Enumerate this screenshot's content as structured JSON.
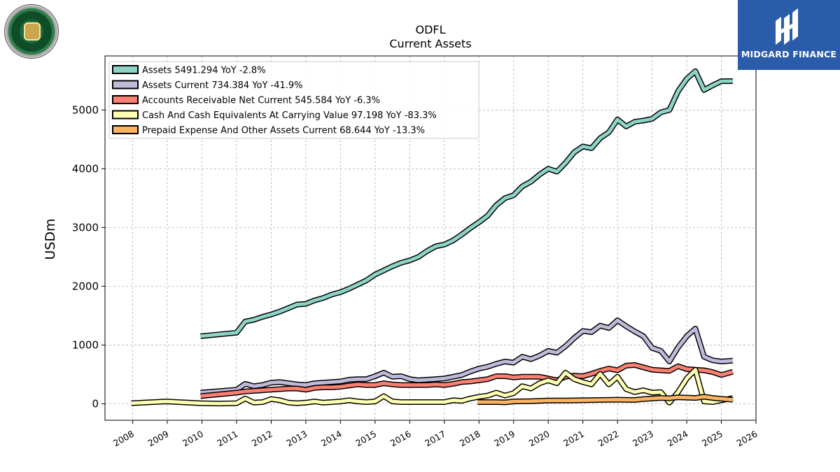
{
  "logos": {
    "left": {
      "name": "Old Dominion Freight Line",
      "text": "OLD DOMINION FREIGHT LINE"
    },
    "right": {
      "name": "MIDGARD FINANCE",
      "bg_color": "#2a5caa"
    }
  },
  "chart_data": {
    "type": "line",
    "title": "ODFL",
    "subtitle": "Current  Assets",
    "ylabel": "USDm",
    "xlabel": "",
    "xlim": [
      2007.2,
      2026.0
    ],
    "ylim": [
      -280,
      5920
    ],
    "xticks": [
      "2008",
      "2009",
      "2010",
      "2011",
      "2012",
      "2013",
      "2014",
      "2015",
      "2016",
      "2017",
      "2018",
      "2019",
      "2020",
      "2021",
      "2022",
      "2023",
      "2024",
      "2025",
      "2026"
    ],
    "yticks": [
      "0",
      "1000",
      "2000",
      "3000",
      "4000",
      "5000"
    ],
    "grid": true,
    "legend_position": "top-left",
    "series": [
      {
        "name": "Assets  5491.294 YoY -2.8%",
        "color": "#8dd3c7",
        "points": [
          [
            2009.96,
            1150
          ],
          [
            2011.0,
            1210
          ],
          [
            2011.25,
            1400
          ],
          [
            2011.5,
            1430
          ],
          [
            2011.75,
            1480
          ],
          [
            2012.0,
            1520
          ],
          [
            2012.25,
            1570
          ],
          [
            2012.5,
            1630
          ],
          [
            2012.75,
            1690
          ],
          [
            2013.0,
            1700
          ],
          [
            2013.25,
            1760
          ],
          [
            2013.5,
            1800
          ],
          [
            2013.75,
            1860
          ],
          [
            2014.0,
            1900
          ],
          [
            2014.25,
            1960
          ],
          [
            2014.5,
            2030
          ],
          [
            2014.75,
            2100
          ],
          [
            2015.0,
            2200
          ],
          [
            2015.25,
            2270
          ],
          [
            2015.5,
            2340
          ],
          [
            2015.75,
            2400
          ],
          [
            2016.0,
            2440
          ],
          [
            2016.25,
            2500
          ],
          [
            2016.5,
            2600
          ],
          [
            2016.75,
            2680
          ],
          [
            2017.0,
            2710
          ],
          [
            2017.25,
            2780
          ],
          [
            2017.5,
            2880
          ],
          [
            2017.75,
            2990
          ],
          [
            2018.0,
            3090
          ],
          [
            2018.25,
            3200
          ],
          [
            2018.5,
            3380
          ],
          [
            2018.75,
            3500
          ],
          [
            2019.0,
            3550
          ],
          [
            2019.25,
            3700
          ],
          [
            2019.5,
            3780
          ],
          [
            2019.75,
            3900
          ],
          [
            2020.0,
            4000
          ],
          [
            2020.25,
            3950
          ],
          [
            2020.5,
            4100
          ],
          [
            2020.75,
            4280
          ],
          [
            2021.0,
            4380
          ],
          [
            2021.25,
            4350
          ],
          [
            2021.5,
            4520
          ],
          [
            2021.75,
            4620
          ],
          [
            2022.0,
            4840
          ],
          [
            2022.25,
            4720
          ],
          [
            2022.5,
            4800
          ],
          [
            2022.75,
            4820
          ],
          [
            2023.0,
            4850
          ],
          [
            2023.25,
            4960
          ],
          [
            2023.5,
            5000
          ],
          [
            2023.75,
            5320
          ],
          [
            2024.0,
            5530
          ],
          [
            2024.25,
            5660
          ],
          [
            2024.5,
            5340
          ],
          [
            2024.75,
            5420
          ],
          [
            2025.0,
            5490
          ],
          [
            2025.33,
            5491
          ]
        ]
      },
      {
        "name": "Assets Current  734.384 YoY -41.9%",
        "color": "#bebada",
        "points": [
          [
            2009.96,
            190
          ],
          [
            2011.0,
            240
          ],
          [
            2011.25,
            340
          ],
          [
            2011.5,
            300
          ],
          [
            2011.75,
            320
          ],
          [
            2012.0,
            360
          ],
          [
            2012.25,
            370
          ],
          [
            2012.5,
            350
          ],
          [
            2012.75,
            330
          ],
          [
            2013.0,
            320
          ],
          [
            2013.25,
            350
          ],
          [
            2013.5,
            360
          ],
          [
            2013.75,
            370
          ],
          [
            2014.0,
            380
          ],
          [
            2014.25,
            410
          ],
          [
            2014.5,
            420
          ],
          [
            2014.75,
            420
          ],
          [
            2015.0,
            470
          ],
          [
            2015.25,
            530
          ],
          [
            2015.5,
            460
          ],
          [
            2015.75,
            470
          ],
          [
            2016.0,
            420
          ],
          [
            2016.25,
            400
          ],
          [
            2016.5,
            410
          ],
          [
            2016.75,
            420
          ],
          [
            2017.0,
            430
          ],
          [
            2017.25,
            460
          ],
          [
            2017.5,
            490
          ],
          [
            2017.75,
            550
          ],
          [
            2018.0,
            600
          ],
          [
            2018.25,
            630
          ],
          [
            2018.5,
            680
          ],
          [
            2018.75,
            720
          ],
          [
            2019.0,
            700
          ],
          [
            2019.25,
            800
          ],
          [
            2019.5,
            760
          ],
          [
            2019.75,
            820
          ],
          [
            2020.0,
            900
          ],
          [
            2020.25,
            870
          ],
          [
            2020.5,
            980
          ],
          [
            2020.75,
            1120
          ],
          [
            2021.0,
            1240
          ],
          [
            2021.25,
            1220
          ],
          [
            2021.5,
            1330
          ],
          [
            2021.75,
            1290
          ],
          [
            2022.0,
            1420
          ],
          [
            2022.25,
            1320
          ],
          [
            2022.5,
            1230
          ],
          [
            2022.75,
            1150
          ],
          [
            2023.0,
            950
          ],
          [
            2023.25,
            900
          ],
          [
            2023.5,
            720
          ],
          [
            2023.75,
            960
          ],
          [
            2024.0,
            1150
          ],
          [
            2024.25,
            1280
          ],
          [
            2024.5,
            800
          ],
          [
            2024.75,
            740
          ],
          [
            2025.0,
            720
          ],
          [
            2025.33,
            734
          ]
        ]
      },
      {
        "name": "Accounts Receivable Net Current  545.584 YoY -6.3%",
        "color": "#fb8072",
        "points": [
          [
            2009.96,
            130
          ],
          [
            2011.0,
            190
          ],
          [
            2011.25,
            210
          ],
          [
            2011.5,
            220
          ],
          [
            2011.75,
            230
          ],
          [
            2012.0,
            240
          ],
          [
            2012.25,
            250
          ],
          [
            2012.5,
            260
          ],
          [
            2012.75,
            260
          ],
          [
            2013.0,
            240
          ],
          [
            2013.25,
            270
          ],
          [
            2013.5,
            280
          ],
          [
            2013.75,
            280
          ],
          [
            2014.0,
            290
          ],
          [
            2014.25,
            310
          ],
          [
            2014.5,
            330
          ],
          [
            2014.75,
            320
          ],
          [
            2015.0,
            320
          ],
          [
            2015.25,
            350
          ],
          [
            2015.5,
            330
          ],
          [
            2015.75,
            320
          ],
          [
            2016.0,
            320
          ],
          [
            2016.25,
            320
          ],
          [
            2016.5,
            320
          ],
          [
            2016.75,
            330
          ],
          [
            2017.0,
            320
          ],
          [
            2017.25,
            340
          ],
          [
            2017.5,
            370
          ],
          [
            2017.75,
            380
          ],
          [
            2018.0,
            400
          ],
          [
            2018.25,
            420
          ],
          [
            2018.5,
            470
          ],
          [
            2018.75,
            470
          ],
          [
            2019.0,
            450
          ],
          [
            2019.25,
            460
          ],
          [
            2019.5,
            460
          ],
          [
            2019.75,
            460
          ],
          [
            2020.0,
            430
          ],
          [
            2020.25,
            400
          ],
          [
            2020.5,
            460
          ],
          [
            2020.75,
            480
          ],
          [
            2021.0,
            470
          ],
          [
            2021.25,
            510
          ],
          [
            2021.5,
            560
          ],
          [
            2021.75,
            600
          ],
          [
            2022.0,
            570
          ],
          [
            2022.25,
            650
          ],
          [
            2022.5,
            660
          ],
          [
            2022.75,
            620
          ],
          [
            2023.0,
            580
          ],
          [
            2023.25,
            570
          ],
          [
            2023.5,
            560
          ],
          [
            2023.75,
            640
          ],
          [
            2024.0,
            590
          ],
          [
            2024.25,
            580
          ],
          [
            2024.5,
            570
          ],
          [
            2024.75,
            540
          ],
          [
            2025.0,
            490
          ],
          [
            2025.33,
            545
          ]
        ]
      },
      {
        "name": "Cash And Cash Equivalents At Carrying Value  97.198 YoY -83.3%",
        "color": "#ffffb3",
        "points": [
          [
            2007.96,
            10
          ],
          [
            2008.96,
            40
          ],
          [
            2009.96,
            10
          ],
          [
            2010.5,
            5
          ],
          [
            2011.0,
            10
          ],
          [
            2011.25,
            90
          ],
          [
            2011.5,
            20
          ],
          [
            2011.75,
            30
          ],
          [
            2012.0,
            80
          ],
          [
            2012.25,
            60
          ],
          [
            2012.5,
            20
          ],
          [
            2012.75,
            10
          ],
          [
            2013.0,
            20
          ],
          [
            2013.25,
            40
          ],
          [
            2013.5,
            20
          ],
          [
            2013.75,
            30
          ],
          [
            2014.0,
            40
          ],
          [
            2014.25,
            60
          ],
          [
            2014.5,
            40
          ],
          [
            2014.75,
            30
          ],
          [
            2015.0,
            40
          ],
          [
            2015.25,
            130
          ],
          [
            2015.5,
            40
          ],
          [
            2015.75,
            30
          ],
          [
            2016.0,
            30
          ],
          [
            2016.25,
            30
          ],
          [
            2016.5,
            30
          ],
          [
            2016.75,
            30
          ],
          [
            2017.0,
            30
          ],
          [
            2017.25,
            60
          ],
          [
            2017.5,
            50
          ],
          [
            2017.75,
            90
          ],
          [
            2018.0,
            120
          ],
          [
            2018.25,
            140
          ],
          [
            2018.5,
            190
          ],
          [
            2018.75,
            140
          ],
          [
            2019.0,
            180
          ],
          [
            2019.25,
            300
          ],
          [
            2019.5,
            260
          ],
          [
            2019.75,
            350
          ],
          [
            2020.0,
            400
          ],
          [
            2020.25,
            350
          ],
          [
            2020.5,
            530
          ],
          [
            2020.75,
            420
          ],
          [
            2021.0,
            370
          ],
          [
            2021.25,
            330
          ],
          [
            2021.5,
            510
          ],
          [
            2021.75,
            330
          ],
          [
            2022.0,
            460
          ],
          [
            2022.25,
            250
          ],
          [
            2022.5,
            200
          ],
          [
            2022.75,
            230
          ],
          [
            2023.0,
            190
          ],
          [
            2023.25,
            200
          ],
          [
            2023.5,
            20
          ],
          [
            2023.75,
            200
          ],
          [
            2024.0,
            430
          ],
          [
            2024.25,
            580
          ],
          [
            2024.5,
            40
          ],
          [
            2024.75,
            30
          ],
          [
            2025.0,
            60
          ],
          [
            2025.33,
            97
          ]
        ]
      },
      {
        "name": "Prepaid Expense And Other Assets Current  68.644 YoY -13.3%",
        "color": "#fdb462",
        "points": [
          [
            2017.96,
            30
          ],
          [
            2018.5,
            30
          ],
          [
            2018.75,
            25
          ],
          [
            2019.0,
            40
          ],
          [
            2019.5,
            45
          ],
          [
            2020.0,
            55
          ],
          [
            2020.5,
            55
          ],
          [
            2021.0,
            60
          ],
          [
            2021.5,
            65
          ],
          [
            2022.0,
            70
          ],
          [
            2022.5,
            65
          ],
          [
            2022.75,
            80
          ],
          [
            2023.0,
            90
          ],
          [
            2023.25,
            100
          ],
          [
            2023.5,
            95
          ],
          [
            2023.75,
            110
          ],
          [
            2024.0,
            105
          ],
          [
            2024.25,
            100
          ],
          [
            2024.5,
            120
          ],
          [
            2024.75,
            100
          ],
          [
            2025.0,
            85
          ],
          [
            2025.33,
            69
          ]
        ]
      }
    ]
  }
}
